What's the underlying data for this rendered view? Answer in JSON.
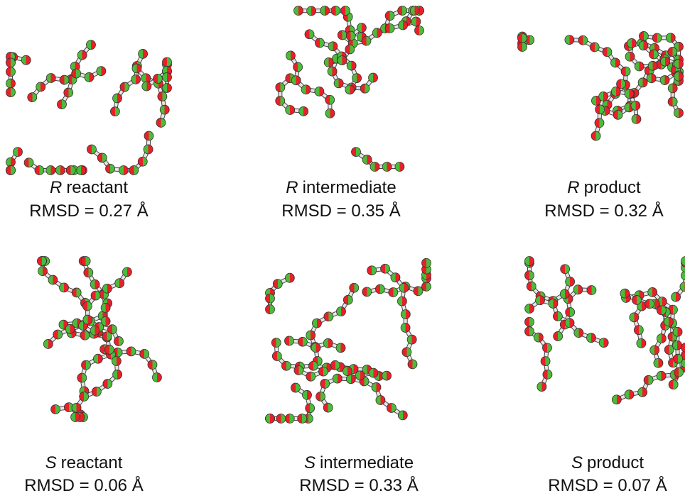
{
  "panels": [
    {
      "stereo": "R",
      "state": "reactant",
      "rmsd": "RMSD = 0.27 Å"
    },
    {
      "stereo": "R",
      "state": "intermediate",
      "rmsd": "RMSD = 0.35 Å"
    },
    {
      "stereo": "R",
      "state": "product",
      "rmsd": "RMSD = 0.32 Å"
    },
    {
      "stereo": "S",
      "state": "reactant",
      "rmsd": "RMSD = 0.06 Å"
    },
    {
      "stereo": "S",
      "state": "intermediate",
      "rmsd": "RMSD = 0.33 Å"
    },
    {
      "stereo": "S",
      "state": "product",
      "rmsd": "RMSD = 0.07 Å"
    }
  ]
}
